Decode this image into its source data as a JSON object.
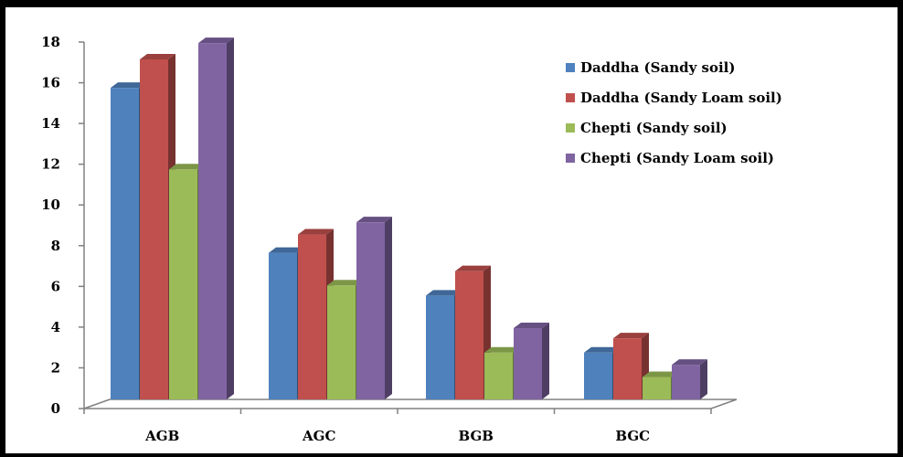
{
  "chart_data": {
    "type": "bar",
    "style": "3d-clustered-column",
    "categories": [
      "AGB",
      "AGC",
      "BGB",
      "BGC"
    ],
    "series": [
      {
        "name": "Daddha (Sandy soil)",
        "values": [
          15.3,
          7.2,
          5.1,
          2.3
        ],
        "color": "#4f81bd"
      },
      {
        "name": "Daddha (Sandy Loam soil)",
        "values": [
          16.7,
          8.1,
          6.3,
          3.0
        ],
        "color": "#c0504d"
      },
      {
        "name": "Chepti (Sandy soil)",
        "values": [
          11.3,
          5.6,
          2.3,
          1.1
        ],
        "color": "#9bbb59"
      },
      {
        "name": "Chepti (Sandy Loam soil)",
        "values": [
          17.5,
          8.7,
          3.5,
          1.7
        ],
        "color": "#8064a2"
      }
    ],
    "yticks": [
      "0",
      "2",
      "4",
      "6",
      "8",
      "10",
      "12",
      "14",
      "16",
      "18"
    ],
    "ylim": [
      0,
      18
    ],
    "title": "",
    "xlabel": "",
    "ylabel": "",
    "grid": false,
    "legend_position": "top-right"
  }
}
